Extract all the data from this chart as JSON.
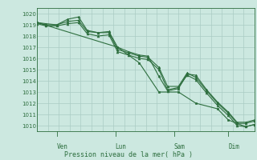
{
  "background_color": "#cce8e0",
  "grid_color": "#aaccc4",
  "line_color": "#2d6e3e",
  "marker_color": "#2d6e3e",
  "axis_label_color": "#2d6e3e",
  "tick_label_color": "#2d6e3e",
  "xlabel": "Pression niveau de la mer( hPa )",
  "ylim": [
    1009.5,
    1020.5
  ],
  "yticks": [
    1010,
    1011,
    1012,
    1013,
    1014,
    1015,
    1016,
    1017,
    1018,
    1019,
    1020
  ],
  "day_labels": [
    "Ven",
    "Lun",
    "Sam",
    "Dim"
  ],
  "day_positions": [
    0.09,
    0.36,
    0.63,
    0.88
  ],
  "series1_x": [
    0.0,
    0.04,
    0.09,
    0.14,
    0.19,
    0.23,
    0.28,
    0.33,
    0.37,
    0.42,
    0.47,
    0.51,
    0.56,
    0.6,
    0.65,
    0.69,
    0.73,
    0.78,
    0.83,
    0.88,
    0.92,
    0.96,
    1.0
  ],
  "series1_y": [
    1019.2,
    1019.1,
    1019.0,
    1019.5,
    1019.7,
    1018.5,
    1018.3,
    1018.4,
    1017.0,
    1016.6,
    1016.3,
    1016.2,
    1014.4,
    1013.1,
    1013.3,
    1014.6,
    1014.5,
    1013.2,
    1012.1,
    1011.2,
    1010.3,
    1010.3,
    1010.5
  ],
  "series2_x": [
    0.0,
    0.04,
    0.09,
    0.14,
    0.19,
    0.23,
    0.28,
    0.33,
    0.37,
    0.42,
    0.47,
    0.51,
    0.56,
    0.6,
    0.65,
    0.69,
    0.73,
    0.78,
    0.83,
    0.88,
    0.92,
    0.96,
    1.0
  ],
  "series2_y": [
    1019.2,
    1019.0,
    1019.0,
    1019.3,
    1019.4,
    1018.4,
    1018.3,
    1018.3,
    1016.8,
    1016.5,
    1016.2,
    1016.1,
    1015.2,
    1013.5,
    1013.5,
    1014.7,
    1014.3,
    1013.1,
    1012.0,
    1011.1,
    1010.2,
    1010.2,
    1010.4
  ],
  "series3_x": [
    0.0,
    0.04,
    0.09,
    0.14,
    0.19,
    0.23,
    0.28,
    0.33,
    0.37,
    0.42,
    0.47,
    0.51,
    0.56,
    0.6,
    0.65,
    0.69,
    0.73,
    0.78,
    0.83,
    0.88,
    0.92,
    0.96,
    1.0
  ],
  "series3_y": [
    1019.1,
    1018.9,
    1018.9,
    1019.1,
    1019.2,
    1018.2,
    1018.0,
    1018.1,
    1016.6,
    1016.3,
    1016.0,
    1015.9,
    1015.0,
    1013.2,
    1013.4,
    1014.5,
    1014.1,
    1012.9,
    1011.8,
    1010.9,
    1010.0,
    1009.9,
    1010.1
  ],
  "series4_x": [
    0.0,
    0.37,
    0.47,
    0.56,
    0.65,
    0.73,
    0.83,
    0.88,
    0.92,
    0.96,
    1.0
  ],
  "series4_y": [
    1019.2,
    1017.0,
    1015.6,
    1013.0,
    1013.0,
    1012.0,
    1011.5,
    1010.5,
    1010.2,
    1009.9,
    1010.1
  ]
}
